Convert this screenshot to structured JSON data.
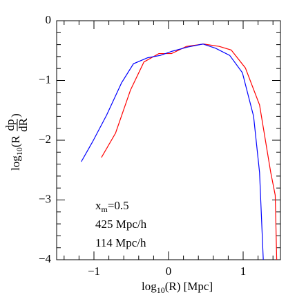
{
  "chart_data": {
    "type": "line",
    "x_label": {
      "prefix": "log",
      "sub": "10",
      "rest": "(R) [Mpc]"
    },
    "y_label": {
      "prefix": "log",
      "sub": "10",
      "open": "(R",
      "num": "dp",
      "den": "dR",
      "close": ")"
    },
    "annotation": {
      "base": "x",
      "sub": "m",
      "rest": "=0.5"
    },
    "xlim": [
      -1.5,
      1.5
    ],
    "ylim": [
      -4,
      0
    ],
    "xticks": [
      {
        "value": -1,
        "label": "−1"
      },
      0,
      1
    ],
    "yticks": [
      0,
      {
        "value": -1,
        "label": "−1"
      },
      {
        "value": -2,
        "label": "−2"
      },
      {
        "value": -3,
        "label": "−3"
      },
      {
        "value": -4,
        "label": "−4"
      }
    ],
    "xticks_minor": [
      -1.4,
      -1.2,
      -0.8,
      -0.6,
      -0.4,
      -0.2,
      0.2,
      0.4,
      0.6,
      0.8,
      1.2,
      1.4
    ],
    "yticks_minor": [
      -0.2,
      -0.4,
      -0.6,
      -0.8,
      -1.2,
      -1.4,
      -1.6,
      -1.8,
      -2.2,
      -2.4,
      -2.6,
      -2.8,
      -3.2,
      -3.4,
      -3.6,
      -3.8
    ],
    "series": [
      {
        "name": "425 Mpc/h",
        "color": "#ff0000",
        "x": [
          -0.9,
          -0.71,
          -0.51,
          -0.33,
          -0.13,
          0.04,
          0.24,
          0.47,
          0.68,
          0.84,
          1.03,
          1.22,
          1.37,
          1.43,
          1.45
        ],
        "values": [
          -2.29,
          -1.88,
          -1.16,
          -0.69,
          -0.55,
          -0.55,
          -0.43,
          -0.39,
          -0.43,
          -0.49,
          -0.79,
          -1.41,
          -2.54,
          -2.92,
          -4
        ]
      },
      {
        "name": "114 Mpc/h",
        "color": "#0000ff",
        "x": [
          -1.17,
          -1.02,
          -0.83,
          -0.63,
          -0.47,
          -0.28,
          -0.11,
          0.05,
          0.26,
          0.46,
          0.63,
          0.82,
          0.99,
          1.14,
          1.22,
          1.27
        ],
        "values": [
          -2.36,
          -2.03,
          -1.58,
          -1.04,
          -0.72,
          -0.62,
          -0.58,
          -0.51,
          -0.44,
          -0.39,
          -0.46,
          -0.58,
          -0.87,
          -1.6,
          -2.54,
          -4
        ]
      }
    ]
  }
}
